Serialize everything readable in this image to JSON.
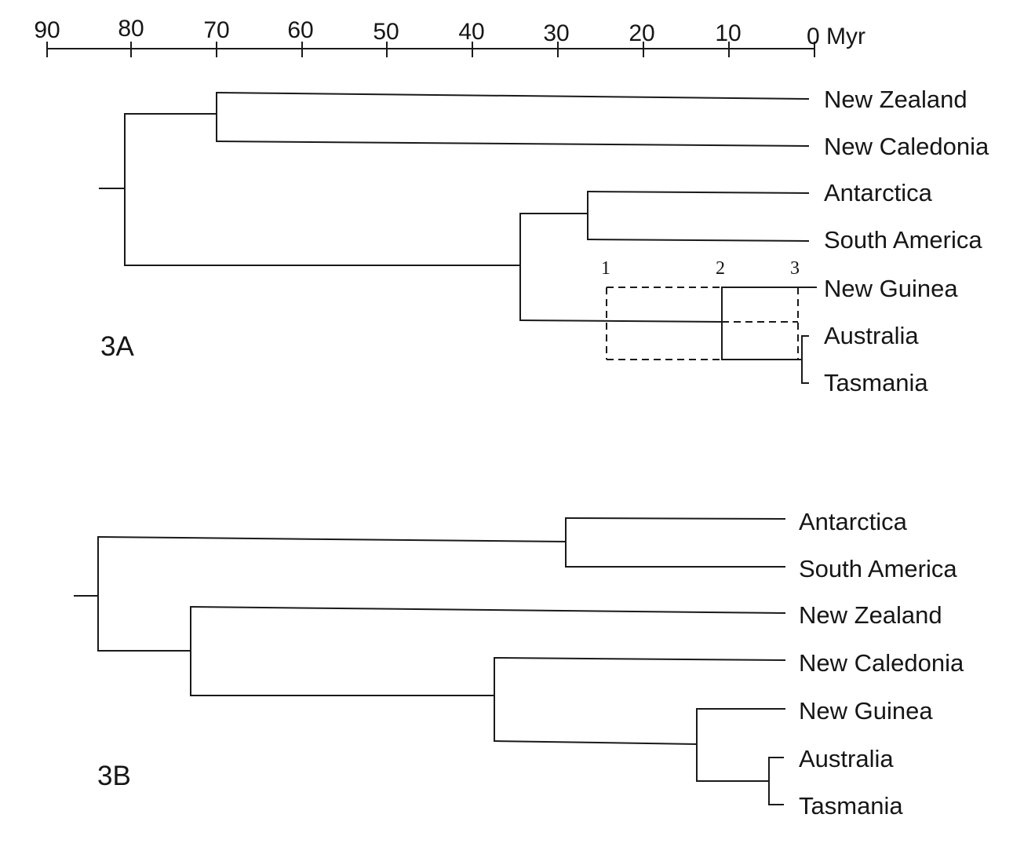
{
  "axis": {
    "ticks": [
      "90",
      "80",
      "70",
      "60",
      "50",
      "40",
      "30",
      "20",
      "10",
      "0 Myr"
    ]
  },
  "tree_3a": {
    "panel_label": "3A",
    "leaves": [
      "New Zealand",
      "New Caledonia",
      "Antarctica",
      "South America",
      "New Guinea",
      "Australia",
      "Tasmania"
    ],
    "alternative_nodes": [
      "1",
      "2",
      "3"
    ]
  },
  "tree_3b": {
    "panel_label": "3B",
    "leaves": [
      "Antarctica",
      "South America",
      "New Zealand",
      "New Caledonia",
      "New Guinea",
      "Australia",
      "Tasmania"
    ]
  }
}
